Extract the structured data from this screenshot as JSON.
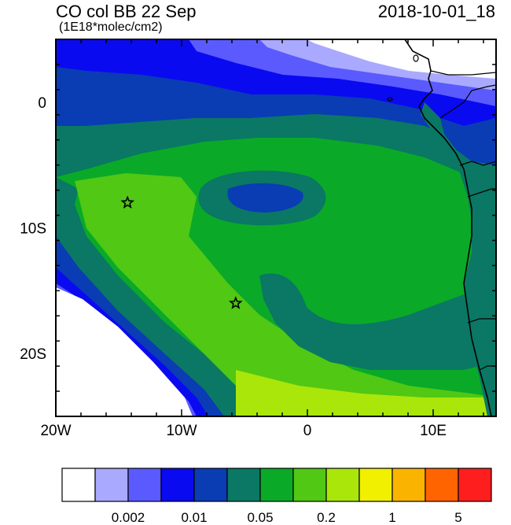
{
  "title_left": "CO col BB 22 Sep",
  "title_right": "2018-10-01_18",
  "subtitle": "(1E18*molec/cm2)",
  "axes": {
    "x_ticks": [
      {
        "lon": -20,
        "label": "20W"
      },
      {
        "lon": -10,
        "label": "10W"
      },
      {
        "lon": 0,
        "label": "0"
      },
      {
        "lon": 10,
        "label": "10E"
      }
    ],
    "y_ticks": [
      {
        "lat": 0,
        "label": "0"
      },
      {
        "lat": -10,
        "label": "10S"
      },
      {
        "lat": -20,
        "label": "20S"
      }
    ],
    "lon_range": [
      -20,
      15
    ],
    "lat_range": [
      -25,
      5
    ]
  },
  "markers": [
    {
      "name": "star-marker-1",
      "lon": -14.3,
      "lat": -8.0
    },
    {
      "name": "star-marker-2",
      "lon": -5.7,
      "lat": -16.0
    }
  ],
  "colorbar": {
    "colors": [
      "#ffffff",
      "#a9a9ff",
      "#5a5aff",
      "#0a0af0",
      "#0a3cb4",
      "#0a7864",
      "#0aaa28",
      "#50c814",
      "#aae60a",
      "#f0f000",
      "#fab400",
      "#ff6400",
      "#ff1e1e"
    ],
    "labels": [
      "0.002",
      "0.01",
      "0.05",
      "0.2",
      "1",
      "5"
    ]
  },
  "chart_data": {
    "type": "heatmap",
    "title": "CO col BB 22 Sep",
    "subtitle": "(1E18*molec/cm2)",
    "time": "2018-10-01_18",
    "colorbar_levels_labeled": [
      0.002,
      0.01,
      0.05,
      0.2,
      1,
      5
    ],
    "region": {
      "lon": [
        -20,
        15
      ],
      "lat": [
        -25,
        5
      ]
    }
  }
}
